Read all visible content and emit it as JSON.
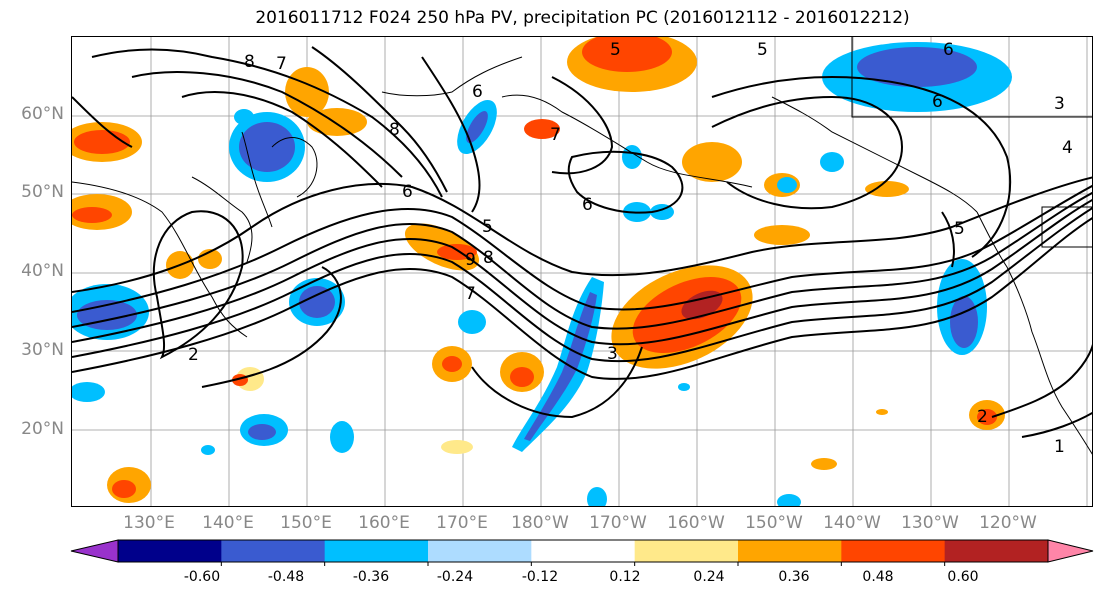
{
  "title": "2016011712 F024 250 hPa PV, precipitation PC (2016012112 - 2016012212)",
  "map": {
    "lat_labels": [
      "60°N",
      "50°N",
      "40°N",
      "30°N",
      "20°N"
    ],
    "lon_labels": [
      "130°E",
      "140°E",
      "150°E",
      "160°E",
      "170°E",
      "180°W",
      "170°W",
      "160°W",
      "150°W",
      "140°W",
      "130°W",
      "120°W"
    ],
    "contour_labels": [
      "8",
      "7",
      "6",
      "8",
      "6",
      "5",
      "6",
      "5",
      "6",
      "3",
      "4",
      "5",
      "2",
      "7",
      "7",
      "3",
      "1",
      "2",
      "9",
      "8",
      "6",
      "5"
    ]
  },
  "colorbar": {
    "tick_labels": [
      "-0.60",
      "-0.48",
      "-0.36",
      "-0.24",
      "-0.12",
      "0.12",
      "0.24",
      "0.36",
      "0.48",
      "0.60"
    ],
    "colors": [
      "#9932CC",
      "#00008B",
      "#3A5BD0",
      "#00BFFF",
      "#ADDCFF",
      "#FFFFFF",
      "#FFE98A",
      "#FFA500",
      "#FF4500",
      "#B22222",
      "#FF85A8"
    ]
  }
}
